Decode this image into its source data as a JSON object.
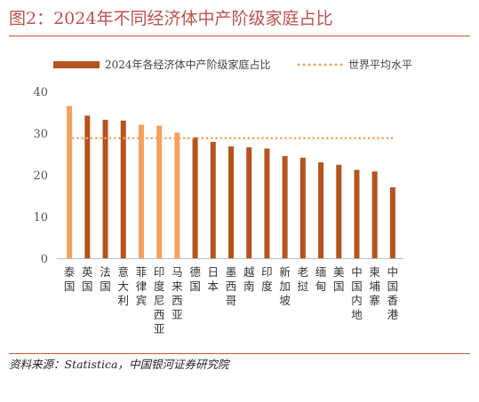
{
  "figure": {
    "title": "图2：2024年不同经济体中产阶级家庭占比",
    "source": "资料来源：Statistica，中国银河证券研究院"
  },
  "colors": {
    "title": "#c0504d",
    "bar_dark": "#b5541c",
    "bar_light": "#f4a15d",
    "reference": "#f4a15d",
    "axis_text": "#555555",
    "rule": "#c05a2a"
  },
  "chart_data": {
    "type": "bar",
    "categories": [
      "泰国",
      "英国",
      "法国",
      "意大利",
      "菲律宾",
      "印度尼西亚",
      "马来西亚",
      "德国",
      "日本",
      "墨西哥",
      "越南",
      "印度",
      "新加坡",
      "老挝",
      "缅甸",
      "美国",
      "中国内地",
      "柬埔寨",
      "中国香港"
    ],
    "series": [
      {
        "name": "2024年各经济体中产阶级家庭占比",
        "type": "bar",
        "values": [
          36.5,
          34.2,
          33.2,
          33.0,
          32.0,
          31.8,
          30.1,
          29.0,
          27.9,
          26.8,
          26.6,
          26.3,
          24.5,
          24.1,
          23.0,
          22.4,
          21.2,
          20.8,
          17.0
        ],
        "highlight": [
          true,
          false,
          false,
          false,
          true,
          true,
          true,
          false,
          false,
          false,
          false,
          false,
          false,
          false,
          false,
          false,
          false,
          false,
          false
        ]
      },
      {
        "name": "世界平均水平",
        "type": "reference-line",
        "value": 28.8
      }
    ],
    "ylim": [
      0,
      40
    ],
    "yticks": [
      0,
      10,
      20,
      30,
      40
    ],
    "grid": false,
    "legend": "top"
  }
}
